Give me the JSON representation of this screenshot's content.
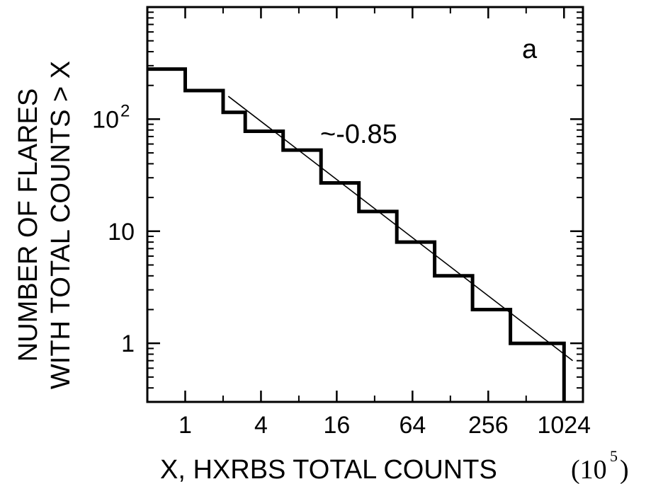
{
  "chart_data": {
    "type": "line",
    "subtype": "step-cumulative-distribution",
    "panel_label": "a",
    "xlabel": "X, HXRBS TOTAL COUNTS",
    "xunit": "(10",
    "xunit_exp": "5",
    "xunit_close": ")",
    "ylabel_line1": "NUMBER OF FLARES",
    "ylabel_line2": "WITH TOTAL COUNTS > X",
    "x_scale": "log2",
    "y_scale": "log10",
    "xlim": [
      0.5,
      1448
    ],
    "ylim": [
      0.3,
      1000
    ],
    "x_ticks": [
      {
        "value": 1,
        "label": "1"
      },
      {
        "value": 4,
        "label": "4"
      },
      {
        "value": 16,
        "label": "16"
      },
      {
        "value": 64,
        "label": "64"
      },
      {
        "value": 256,
        "label": "256"
      },
      {
        "value": 1024,
        "label": "1024"
      }
    ],
    "y_ticks": [
      {
        "value": 1,
        "label": "1",
        "exp": ""
      },
      {
        "value": 10,
        "label": "10",
        "exp": ""
      },
      {
        "value": 100,
        "label": "10",
        "exp": "2"
      }
    ],
    "steps": [
      {
        "x_start": 0.5,
        "x_end": 1,
        "y": 280
      },
      {
        "x_start": 1,
        "x_end": 2,
        "y": 180
      },
      {
        "x_start": 2,
        "x_end": 3,
        "y": 115
      },
      {
        "x_start": 3,
        "x_end": 6,
        "y": 78
      },
      {
        "x_start": 6,
        "x_end": 12,
        "y": 53
      },
      {
        "x_start": 12,
        "x_end": 24,
        "y": 27
      },
      {
        "x_start": 24,
        "x_end": 48,
        "y": 15
      },
      {
        "x_start": 48,
        "x_end": 96,
        "y": 8
      },
      {
        "x_start": 96,
        "x_end": 192,
        "y": 4
      },
      {
        "x_start": 192,
        "x_end": 384,
        "y": 2
      },
      {
        "x_start": 384,
        "x_end": 768,
        "y": 1
      },
      {
        "x_start": 768,
        "x_end": 1024,
        "y": 1
      }
    ],
    "step_end_drop_to": 0.3,
    "fit_line": {
      "x1": 2.2,
      "y1": 160,
      "x2": 1200,
      "y2": 0.7
    },
    "fit_label": "~-0.85",
    "grid": false
  }
}
